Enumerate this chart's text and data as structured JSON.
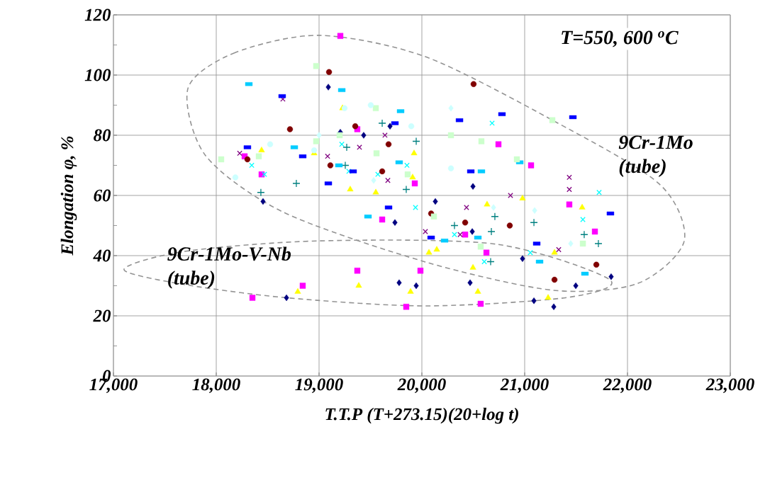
{
  "chart_data": {
    "type": "scatter",
    "xlabel": "T.T.P    (T+273.15)(20+log t)",
    "ylabel": "Elongation  φ,   %",
    "annotations": [
      "T=550, 600 $^{o}$C",
      "9Cr-1Mo (tube)",
      "9Cr-1Mo-V-Nb (tube)"
    ],
    "xlim": [
      17000,
      23000
    ],
    "ylim": [
      0,
      120
    ],
    "xticks": [
      {
        "value": 17000,
        "label": "17,000"
      },
      {
        "value": 18000,
        "label": "18,000"
      },
      {
        "value": 19000,
        "label": "19,000"
      },
      {
        "value": 20000,
        "label": "20,000"
      },
      {
        "value": 21000,
        "label": "21,000"
      },
      {
        "value": 22000,
        "label": "22,000"
      },
      {
        "value": 23000,
        "label": "23,000"
      }
    ],
    "yticks": [
      0,
      {
        "value": 10,
        "label": null
      },
      20,
      {
        "value": 30,
        "label": null
      },
      40,
      {
        "value": 50,
        "label": null
      },
      60,
      {
        "value": 70,
        "label": null
      },
      80,
      {
        "value": 90,
        "label": null
      },
      100,
      {
        "value": 110,
        "label": null
      },
      120
    ],
    "grid": true,
    "series": [
      {
        "color": "#000080",
        "marker": "diamond",
        "x": [
          18455,
          18683,
          19090,
          19207,
          19434,
          19690,
          19738,
          19779,
          19945,
          20131,
          20469,
          20490,
          20497,
          20979,
          21090,
          21283,
          21497,
          21841
        ],
        "values": [
          58,
          26,
          96,
          81,
          80,
          83,
          51,
          31,
          30,
          58,
          31,
          48,
          63,
          39,
          25,
          23,
          30,
          33
        ]
      },
      {
        "color": "#ff00ff",
        "marker": "square",
        "x": [
          19207,
          19372,
          18276,
          18441,
          19614,
          19372,
          18841,
          18352,
          19931,
          20421,
          20628,
          19986,
          19848,
          20572,
          21434,
          20745,
          21062,
          21683
        ],
        "values": [
          113,
          82,
          73,
          67,
          52,
          35,
          30,
          26,
          64,
          47,
          41,
          35,
          23,
          24,
          57,
          77,
          70,
          48
        ]
      },
      {
        "color": "#ffff00",
        "marker": "triangle",
        "x": [
          19228,
          18441,
          18952,
          19303,
          19552,
          18793,
          19386,
          19924,
          19910,
          20634,
          20979,
          20069,
          20145,
          21290,
          20497,
          20545,
          19890,
          21228,
          21559
        ],
        "values": [
          89,
          75,
          74,
          62,
          61,
          28,
          30,
          74,
          66,
          57,
          59,
          41,
          42,
          41,
          36,
          28,
          28,
          26,
          56
        ]
      },
      {
        "color": "#00ffff",
        "marker": "cross",
        "x": [
          19221,
          18345,
          19290,
          18469,
          19572,
          20683,
          19855,
          19938,
          20317,
          20607,
          21055,
          21724,
          21566
        ],
        "values": [
          77,
          70,
          68,
          67,
          67,
          84,
          70,
          56,
          47,
          38,
          41,
          61,
          52
        ]
      },
      {
        "color": "#800080",
        "marker": "cross",
        "x": [
          18648,
          18228,
          19083,
          19393,
          19641,
          19669,
          20862,
          20434,
          20034,
          20372,
          21331,
          21434,
          21434
        ],
        "values": [
          92,
          74,
          73,
          76,
          80,
          65,
          60,
          56,
          48,
          47,
          42,
          66,
          62
        ]
      },
      {
        "color": "#800000",
        "marker": "circle",
        "x": [
          19097,
          18717,
          18303,
          19352,
          19676,
          19110,
          19614,
          20503,
          20090,
          20421,
          20855,
          21290,
          21697
        ],
        "values": [
          101,
          82,
          72,
          83,
          77,
          70,
          68,
          97,
          54,
          51,
          50,
          32,
          37
        ]
      },
      {
        "color": "#008080",
        "marker": "plus",
        "x": [
          19614,
          19269,
          19255,
          18779,
          18434,
          19945,
          19848,
          20710,
          20317,
          20676,
          21090,
          20669,
          21579,
          21717
        ],
        "values": [
          84,
          76,
          70,
          64,
          61,
          78,
          62,
          53,
          50,
          48,
          51,
          38,
          47,
          44
        ]
      },
      {
        "color": "#0000ff",
        "x": [
          18641,
          18303,
          19738,
          19331,
          18841,
          19090,
          19676,
          20366,
          20779,
          20476,
          21469,
          20090,
          21117,
          21834
        ],
        "values": [
          93,
          76,
          84,
          68,
          73,
          64,
          56,
          85,
          87,
          68,
          86,
          46,
          44,
          54
        ]
      },
      {
        "color": "#00ccff",
        "x": [
          18317,
          19221,
          18759,
          19193,
          19476,
          19793,
          19779,
          20579,
          20952,
          20221,
          20545,
          21145,
          21586
        ],
        "values": [
          97,
          95,
          76,
          70,
          53,
          88,
          71,
          68,
          71,
          45,
          46,
          38,
          34
        ]
      },
      {
        "color": "#ccffcc",
        "marker": "square",
        "x": [
          18972,
          19552,
          19200,
          18972,
          18414,
          18048,
          19559,
          20283,
          20579,
          20924,
          21269,
          19862,
          20117,
          20572,
          21566
        ],
        "values": [
          103,
          89,
          80,
          78,
          73,
          72,
          74,
          80,
          78,
          72,
          85,
          67,
          53,
          43,
          44
        ]
      },
      {
        "color": "#ccffff",
        "marker": "circle",
        "x": [
          19248,
          19503,
          18524,
          18952,
          18186,
          19897,
          20283
        ],
        "values": [
          89,
          90,
          77,
          75,
          66,
          83,
          69
        ]
      },
      {
        "color": "#ccffff",
        "marker": "diamond",
        "x": [
          19000,
          20283,
          20697,
          21097,
          21448,
          19531
        ],
        "values": [
          80,
          89,
          56,
          55,
          44,
          65
        ]
      }
    ]
  }
}
